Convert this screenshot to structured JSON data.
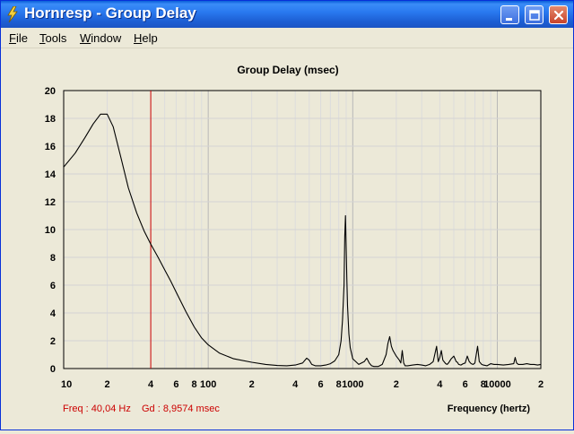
{
  "window": {
    "title": "Hornresp - Group Delay",
    "controls": [
      "minimize",
      "maximize",
      "close"
    ]
  },
  "menu": [
    {
      "label": "File",
      "mnemonic": "F",
      "rest": "ile"
    },
    {
      "label": "Tools",
      "mnemonic": "T",
      "rest": "ools"
    },
    {
      "label": "Window",
      "mnemonic": "W",
      "rest": "indow"
    },
    {
      "label": "Help",
      "mnemonic": "H",
      "rest": "elp"
    }
  ],
  "status": {
    "freq": "Freq : 40,04 Hz",
    "gd": "Gd : 8,9574 msec",
    "color": "#cc0000"
  },
  "chart_data": {
    "type": "line",
    "title": "Group Delay (msec)",
    "xlabel": "Frequency (hertz)",
    "ylabel": "",
    "xscale": "log",
    "xlim": [
      10,
      20000
    ],
    "ylim": [
      0,
      20
    ],
    "yticks": [
      "0",
      "2",
      "4",
      "6",
      "8",
      "10",
      "12",
      "14",
      "16",
      "18",
      "20"
    ],
    "xtick_labels": [
      {
        "v": 10,
        "label": "10"
      },
      {
        "v": 20,
        "label": "2"
      },
      {
        "v": 40,
        "label": "4"
      },
      {
        "v": 60,
        "label": "6"
      },
      {
        "v": 80,
        "label": "8"
      },
      {
        "v": 100,
        "label": "100"
      },
      {
        "v": 200,
        "label": "2"
      },
      {
        "v": 400,
        "label": "4"
      },
      {
        "v": 600,
        "label": "6"
      },
      {
        "v": 800,
        "label": "8"
      },
      {
        "v": 1000,
        "label": "1000"
      },
      {
        "v": 2000,
        "label": "2"
      },
      {
        "v": 4000,
        "label": "4"
      },
      {
        "v": 6000,
        "label": "6"
      },
      {
        "v": 8000,
        "label": "8"
      },
      {
        "v": 10000,
        "label": "10000"
      },
      {
        "v": 20000,
        "label": "2"
      }
    ],
    "grid": true,
    "cursor": {
      "x": 40.04,
      "y": 8.9574,
      "color": "#cc0000"
    },
    "series": [
      {
        "color": "#000000",
        "x": [
          10,
          12,
          14,
          16,
          18,
          20,
          22,
          25,
          28,
          32,
          36,
          40,
          45,
          50,
          55,
          60,
          70,
          80,
          90,
          100,
          120,
          150,
          200,
          250,
          300,
          350,
          400,
          450,
          480,
          500,
          520,
          550,
          600,
          650,
          700,
          750,
          800,
          830,
          850,
          870,
          880,
          890,
          900,
          910,
          920,
          940,
          960,
          1000,
          1100,
          1200,
          1250,
          1300,
          1350,
          1400,
          1500,
          1600,
          1700,
          1750,
          1800,
          1850,
          1900,
          2000,
          2100,
          2150,
          2200,
          2250,
          2300,
          2400,
          2600,
          2800,
          3000,
          3200,
          3400,
          3600,
          3800,
          3900,
          4000,
          4100,
          4200,
          4400,
          4500,
          4600,
          4800,
          5000,
          5200,
          5300,
          5400,
          5600,
          5800,
          6000,
          6200,
          6400,
          6600,
          6800,
          7000,
          7300,
          7500,
          7800,
          8000,
          8500,
          9000,
          9500,
          10000,
          11000,
          12000,
          13000,
          13300,
          13600,
          14000,
          15000,
          16000,
          17000,
          18000,
          19000,
          20000
        ],
        "y": [
          14.5,
          15.5,
          16.6,
          17.6,
          18.3,
          18.3,
          17.4,
          15.1,
          13.0,
          11.2,
          9.9,
          8.96,
          8.0,
          7.1,
          6.3,
          5.5,
          4.1,
          3.0,
          2.2,
          1.7,
          1.1,
          0.7,
          0.45,
          0.3,
          0.22,
          0.2,
          0.25,
          0.4,
          0.75,
          0.6,
          0.3,
          0.2,
          0.2,
          0.25,
          0.35,
          0.55,
          1.0,
          2.0,
          3.5,
          6.0,
          9.5,
          11.0,
          9.0,
          6.5,
          4.5,
          2.5,
          1.5,
          0.7,
          0.3,
          0.5,
          0.75,
          0.4,
          0.2,
          0.15,
          0.15,
          0.3,
          1.0,
          1.8,
          2.3,
          1.6,
          1.3,
          0.9,
          0.6,
          0.4,
          1.3,
          0.4,
          0.2,
          0.2,
          0.25,
          0.3,
          0.25,
          0.2,
          0.3,
          0.5,
          1.6,
          0.5,
          0.8,
          1.3,
          0.6,
          0.35,
          0.3,
          0.4,
          0.7,
          0.9,
          0.5,
          0.45,
          0.3,
          0.25,
          0.35,
          0.4,
          0.9,
          0.5,
          0.35,
          0.3,
          0.4,
          1.6,
          0.5,
          0.3,
          0.25,
          0.2,
          0.35,
          0.3,
          0.3,
          0.25,
          0.3,
          0.35,
          0.8,
          0.4,
          0.3,
          0.3,
          0.35,
          0.3,
          0.3,
          0.25,
          0.3
        ]
      }
    ]
  }
}
